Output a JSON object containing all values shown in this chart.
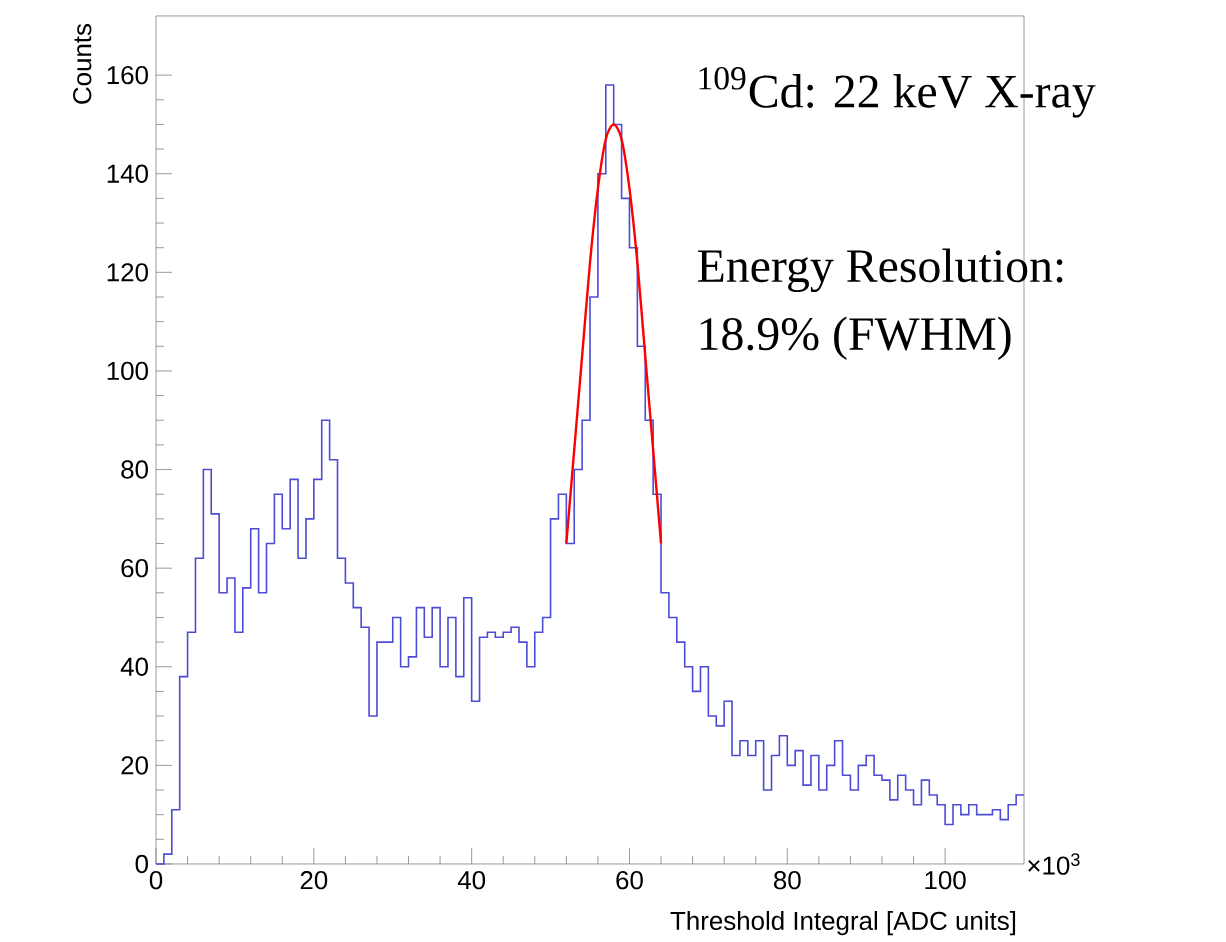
{
  "chart_data": {
    "type": "histogram",
    "xlabel": "Threshold Integral [ADC units]",
    "ylabel": "Counts",
    "annotations": [
      "$^{109}$Cd: 22 keV X-ray",
      "Energy Resolution:",
      "18.9% (FWHM)",
      "×10$^{3}$"
    ],
    "xlim": [
      0,
      110
    ],
    "ylim": [
      0,
      172
    ],
    "xticks": [
      0,
      20,
      40,
      60,
      80,
      100
    ],
    "yticks": [
      0,
      20,
      40,
      60,
      80,
      100,
      120,
      140,
      160
    ],
    "grid": false,
    "series": [
      {
        "color": "#4c4cd6",
        "bins": [
          0,
          1,
          2,
          3,
          4,
          5,
          6,
          7,
          8,
          9,
          10,
          11,
          12,
          13,
          14,
          15,
          16,
          17,
          18,
          19,
          20,
          21,
          22,
          23,
          24,
          25,
          26,
          27,
          28,
          29,
          30,
          31,
          32,
          33,
          34,
          35,
          36,
          37,
          38,
          39,
          40,
          41,
          42,
          43,
          44,
          45,
          46,
          47,
          48,
          49,
          50,
          51,
          52,
          53,
          54,
          55,
          56,
          57,
          58,
          59,
          60,
          61,
          62,
          63,
          64,
          65,
          66,
          67,
          68,
          69,
          70,
          71,
          72,
          73,
          74,
          75,
          76,
          77,
          78,
          79,
          80,
          81,
          82,
          83,
          84,
          85,
          86,
          87,
          88,
          89,
          90,
          91,
          92,
          93,
          94,
          95,
          96,
          97,
          98,
          99,
          100,
          101,
          102,
          103,
          104,
          105,
          106,
          107,
          108,
          109,
          110
        ],
        "values": [
          0,
          2,
          11,
          38,
          47,
          62,
          80,
          71,
          55,
          58,
          47,
          56,
          68,
          55,
          65,
          75,
          68,
          78,
          62,
          70,
          78,
          90,
          82,
          62,
          57,
          52,
          48,
          30,
          45,
          45,
          50,
          40,
          42,
          52,
          46,
          52,
          40,
          50,
          38,
          54,
          33,
          46,
          47,
          46,
          47,
          48,
          45,
          40,
          47,
          50,
          70,
          75,
          65,
          80,
          90,
          115,
          140,
          158,
          150,
          135,
          125,
          105,
          90,
          75,
          55,
          50,
          45,
          40,
          35,
          40,
          30,
          28,
          33,
          22,
          25,
          22,
          25,
          15,
          22,
          26,
          20,
          23,
          16,
          22,
          15,
          20,
          25,
          18,
          15,
          20,
          22,
          18,
          17,
          13,
          18,
          15,
          12,
          17,
          14,
          12,
          8,
          12,
          10,
          12,
          10,
          10,
          11,
          9,
          12,
          14
        ]
      },
      {
        "type": "line",
        "color": "#ff0000",
        "x": [
          52,
          53,
          54,
          55,
          56,
          57,
          58,
          59,
          60,
          61,
          62,
          63,
          64
        ],
        "values": [
          65,
          84,
          103,
          122,
          137,
          147,
          150,
          147,
          137,
          122,
          103,
          84,
          65
        ]
      }
    ]
  }
}
